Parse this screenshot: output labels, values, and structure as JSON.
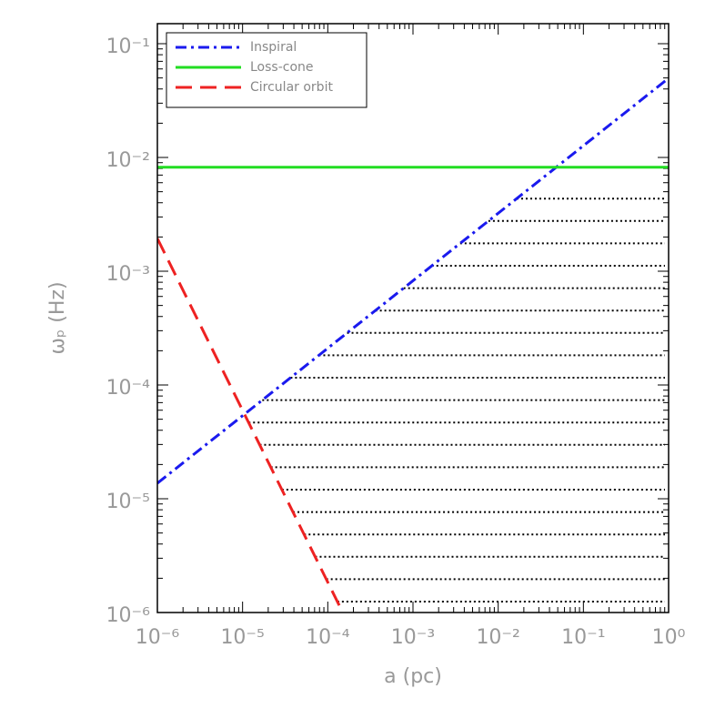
{
  "chart_data": {
    "type": "line",
    "x_label": "a (pc)",
    "y_label": "ωₚ (Hz)",
    "log_x": true,
    "log_y": true,
    "xlim": [
      1e-06,
      1
    ],
    "ylim": [
      1e-06,
      0.15
    ],
    "xticks": [
      {
        "value": 1e-06,
        "label": "10⁻⁶"
      },
      {
        "value": 1e-05,
        "label": "10⁻⁵"
      },
      {
        "value": 0.0001,
        "label": "10⁻⁴"
      },
      {
        "value": 0.001,
        "label": "10⁻³"
      },
      {
        "value": 0.01,
        "label": "10⁻²"
      },
      {
        "value": 0.1,
        "label": "10⁻¹"
      },
      {
        "value": 1,
        "label": "10⁰"
      }
    ],
    "yticks": [
      {
        "value": 1e-06,
        "label": "10⁻⁶"
      },
      {
        "value": 1e-05,
        "label": "10⁻⁵"
      },
      {
        "value": 0.0001,
        "label": "10⁻⁴"
      },
      {
        "value": 0.001,
        "label": "10⁻³"
      },
      {
        "value": 0.01,
        "label": "10⁻²"
      },
      {
        "value": 0.1,
        "label": "10⁻¹"
      }
    ],
    "legend": "upper left",
    "series": [
      {
        "name": "Inspiral",
        "color": "#1a1aee",
        "style": "dashdot",
        "x": [
          1e-06,
          1
        ],
        "values": [
          1.37e-05,
          0.0497
        ]
      },
      {
        "name": "Loss-cone",
        "color": "#22dd22",
        "style": "solid",
        "x": [
          1e-06,
          1
        ],
        "values": [
          0.0082,
          0.0082
        ]
      },
      {
        "name": "Circular orbit",
        "color": "#ee2222",
        "style": "dashed",
        "x": [
          1e-06,
          0.00015
        ],
        "values": [
          0.00194,
          1e-06
        ]
      }
    ]
  }
}
